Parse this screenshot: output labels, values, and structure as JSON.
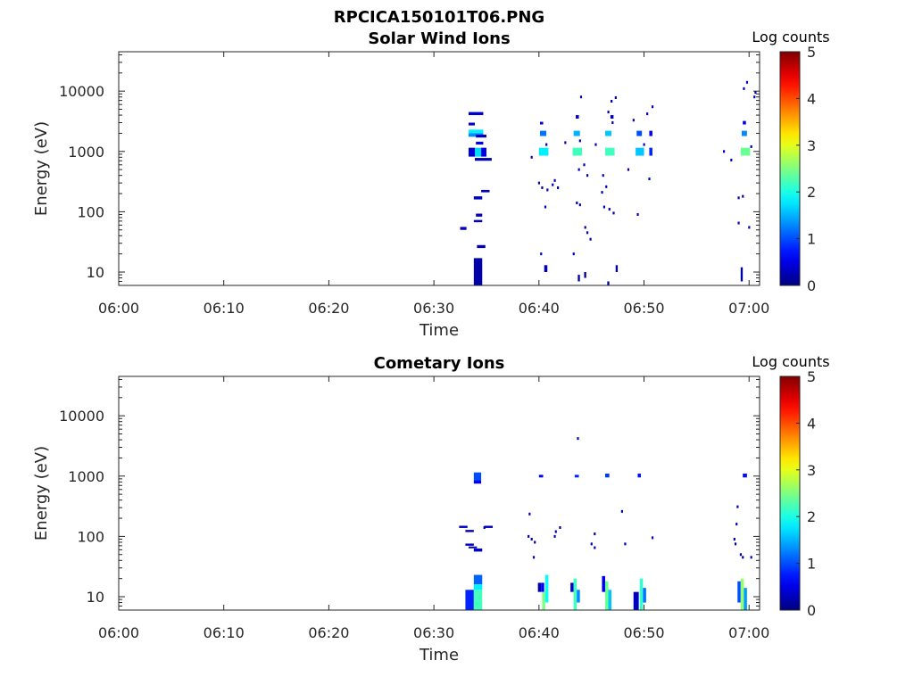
{
  "figure": {
    "title": "RPCICA150101T06.PNG"
  },
  "chart_data": [
    {
      "type": "heatmap",
      "title": "Solar Wind Ions",
      "xlabel": "Time",
      "ylabel": "Energy (eV)",
      "x_ticks": [
        "06:00",
        "06:10",
        "06:20",
        "06:30",
        "06:40",
        "06:50",
        "07:00"
      ],
      "x_range_minutes": [
        0,
        61
      ],
      "y_scale": "log",
      "y_ticks": [
        10,
        100,
        1000,
        10000
      ],
      "y_tick_labels": [
        "10",
        "100",
        "1000",
        "10000"
      ],
      "y_range": [
        6,
        45000
      ],
      "colorbar": {
        "label": "Log counts",
        "min": 0,
        "max": 5,
        "ticks": [
          "0",
          "1",
          "2",
          "3",
          "4",
          "5"
        ]
      },
      "cells": [
        {
          "t": 32.5,
          "dt": 0.6,
          "e1": 50,
          "e2": 56,
          "v": 0.3
        },
        {
          "t": 33.3,
          "dt": 1.4,
          "e1": 4000,
          "e2": 4500,
          "v": 0.4
        },
        {
          "t": 33.3,
          "dt": 0.6,
          "e1": 2700,
          "e2": 3000,
          "v": 0.4
        },
        {
          "t": 33.3,
          "dt": 1.4,
          "e1": 2000,
          "e2": 2300,
          "v": 1.8
        },
        {
          "t": 33.3,
          "dt": 1.4,
          "e1": 1750,
          "e2": 2000,
          "v": 1.3
        },
        {
          "t": 33.3,
          "dt": 0.6,
          "e1": 820,
          "e2": 1150,
          "v": 0.4
        },
        {
          "t": 33.9,
          "dt": 0.6,
          "e1": 820,
          "e2": 1150,
          "v": 1.7
        },
        {
          "t": 34.5,
          "dt": 0.5,
          "e1": 820,
          "e2": 1150,
          "v": 0.5
        },
        {
          "t": 33.9,
          "dt": 1.6,
          "e1": 700,
          "e2": 780,
          "v": 0.2
        },
        {
          "t": 34.0,
          "dt": 1.0,
          "e1": 1700,
          "e2": 1900,
          "v": 0.3
        },
        {
          "t": 34.0,
          "dt": 0.7,
          "e1": 1300,
          "e2": 1450,
          "v": 0.5
        },
        {
          "t": 34.5,
          "dt": 0.8,
          "e1": 210,
          "e2": 230,
          "v": 0.3
        },
        {
          "t": 33.8,
          "dt": 0.8,
          "e1": 160,
          "e2": 180,
          "v": 0.3
        },
        {
          "t": 34.0,
          "dt": 0.6,
          "e1": 83,
          "e2": 93,
          "v": 0.3
        },
        {
          "t": 33.8,
          "dt": 0.8,
          "e1": 67,
          "e2": 73,
          "v": 0.3
        },
        {
          "t": 34.1,
          "dt": 0.8,
          "e1": 25,
          "e2": 28,
          "v": 0.2
        },
        {
          "t": 33.8,
          "dt": 0.8,
          "e1": 6,
          "e2": 17,
          "v": 0.2
        },
        {
          "t": 40.0,
          "dt": 0.9,
          "e1": 850,
          "e2": 1150,
          "v": 1.8
        },
        {
          "t": 40.1,
          "dt": 0.6,
          "e1": 1800,
          "e2": 2200,
          "v": 1.2
        },
        {
          "t": 40.1,
          "dt": 0.3,
          "e1": 2800,
          "e2": 3100,
          "v": 0.5
        },
        {
          "t": 43.2,
          "dt": 0.9,
          "e1": 850,
          "e2": 1150,
          "v": 2.2
        },
        {
          "t": 43.3,
          "dt": 0.6,
          "e1": 1800,
          "e2": 2200,
          "v": 1.5
        },
        {
          "t": 43.5,
          "dt": 0.3,
          "e1": 3500,
          "e2": 4000,
          "v": 0.5
        },
        {
          "t": 46.3,
          "dt": 0.9,
          "e1": 850,
          "e2": 1150,
          "v": 2.2
        },
        {
          "t": 46.3,
          "dt": 0.6,
          "e1": 1800,
          "e2": 2200,
          "v": 1.6
        },
        {
          "t": 46.8,
          "dt": 0.3,
          "e1": 3500,
          "e2": 4000,
          "v": 0.4
        },
        {
          "t": 49.2,
          "dt": 0.8,
          "e1": 850,
          "e2": 1150,
          "v": 1.6
        },
        {
          "t": 49.3,
          "dt": 0.5,
          "e1": 1800,
          "e2": 2200,
          "v": 1.0
        },
        {
          "t": 50.5,
          "dt": 0.3,
          "e1": 850,
          "e2": 1150,
          "v": 0.8
        },
        {
          "t": 50.5,
          "dt": 0.3,
          "e1": 1800,
          "e2": 2200,
          "v": 0.6
        },
        {
          "t": 59.2,
          "dt": 0.9,
          "e1": 850,
          "e2": 1150,
          "v": 2.4
        },
        {
          "t": 59.3,
          "dt": 0.5,
          "e1": 1800,
          "e2": 2200,
          "v": 1.3
        },
        {
          "t": 59.4,
          "dt": 0.3,
          "e1": 2800,
          "e2": 3200,
          "v": 0.5
        },
        {
          "t": 40.5,
          "dt": 0.3,
          "e1": 10,
          "e2": 13,
          "v": 0.3
        },
        {
          "t": 43.7,
          "dt": 0.2,
          "e1": 7,
          "e2": 9,
          "v": 0.2
        },
        {
          "t": 44.3,
          "dt": 0.2,
          "e1": 8,
          "e2": 10,
          "v": 0.2
        },
        {
          "t": 47.3,
          "dt": 0.2,
          "e1": 10,
          "e2": 13,
          "v": 0.2
        },
        {
          "t": 46.5,
          "dt": 0.2,
          "e1": 6,
          "e2": 7,
          "v": 0.2
        },
        {
          "t": 59.2,
          "dt": 0.2,
          "e1": 7,
          "e2": 12,
          "v": 0.2
        }
      ],
      "dots": [
        {
          "t": 40.0,
          "e": 300
        },
        {
          "t": 40.3,
          "e": 250
        },
        {
          "t": 40.8,
          "e": 230
        },
        {
          "t": 41.3,
          "e": 280
        },
        {
          "t": 41.8,
          "e": 250
        },
        {
          "t": 39.3,
          "e": 800
        },
        {
          "t": 40.7,
          "e": 1300
        },
        {
          "t": 40.2,
          "e": 20
        },
        {
          "t": 40.6,
          "e": 120
        },
        {
          "t": 43.6,
          "e": 140
        },
        {
          "t": 43.9,
          "e": 130
        },
        {
          "t": 44.4,
          "e": 55
        },
        {
          "t": 44.6,
          "e": 45
        },
        {
          "t": 44.9,
          "e": 35
        },
        {
          "t": 43.3,
          "e": 20
        },
        {
          "t": 43.8,
          "e": 500
        },
        {
          "t": 44.3,
          "e": 600
        },
        {
          "t": 45.4,
          "e": 1300
        },
        {
          "t": 46.2,
          "e": 120
        },
        {
          "t": 46.7,
          "e": 110
        },
        {
          "t": 47.1,
          "e": 95
        },
        {
          "t": 46.0,
          "e": 210
        },
        {
          "t": 46.4,
          "e": 260
        },
        {
          "t": 46.1,
          "e": 400
        },
        {
          "t": 46.6,
          "e": 4500
        },
        {
          "t": 46.9,
          "e": 6800
        },
        {
          "t": 47.3,
          "e": 7800
        },
        {
          "t": 47.0,
          "e": 3000
        },
        {
          "t": 49.0,
          "e": 3300
        },
        {
          "t": 49.4,
          "e": 90
        },
        {
          "t": 50.0,
          "e": 1300
        },
        {
          "t": 50.3,
          "e": 4200
        },
        {
          "t": 50.8,
          "e": 5500
        },
        {
          "t": 48.5,
          "e": 500
        },
        {
          "t": 50.5,
          "e": 350
        },
        {
          "t": 44.0,
          "e": 8000
        },
        {
          "t": 43.9,
          "e": 1500
        },
        {
          "t": 42.5,
          "e": 1400
        },
        {
          "t": 57.6,
          "e": 1000
        },
        {
          "t": 58.3,
          "e": 720
        },
        {
          "t": 59.4,
          "e": 180
        },
        {
          "t": 59.0,
          "e": 170
        },
        {
          "t": 59.8,
          "e": 14000
        },
        {
          "t": 60.5,
          "e": 8000
        },
        {
          "t": 60.2,
          "e": 1200
        },
        {
          "t": 59.0,
          "e": 65
        },
        {
          "t": 60.0,
          "e": 55
        },
        {
          "t": 60.6,
          "e": 9500
        },
        {
          "t": 59.5,
          "e": 11000
        },
        {
          "t": 44.6,
          "e": 400
        },
        {
          "t": 41.5,
          "e": 330
        }
      ]
    },
    {
      "type": "heatmap",
      "title": "Cometary Ions",
      "xlabel": "Time",
      "ylabel": "Energy (eV)",
      "x_ticks": [
        "06:00",
        "06:10",
        "06:20",
        "06:30",
        "06:40",
        "06:50",
        "07:00"
      ],
      "x_range_minutes": [
        0,
        61
      ],
      "y_scale": "log",
      "y_ticks": [
        10,
        100,
        1000,
        10000
      ],
      "y_tick_labels": [
        "10",
        "100",
        "1000",
        "10000"
      ],
      "y_range": [
        6,
        45000
      ],
      "colorbar": {
        "label": "Log counts",
        "min": 0,
        "max": 5,
        "ticks": [
          "0",
          "1",
          "2",
          "3",
          "4",
          "5"
        ]
      },
      "cells": [
        {
          "t": 32.4,
          "dt": 0.8,
          "e1": 138,
          "e2": 150,
          "v": 0.3
        },
        {
          "t": 33.0,
          "dt": 0.8,
          "e1": 118,
          "e2": 128,
          "v": 0.3
        },
        {
          "t": 33.0,
          "dt": 0.8,
          "e1": 70,
          "e2": 76,
          "v": 0.3
        },
        {
          "t": 33.3,
          "dt": 0.8,
          "e1": 64,
          "e2": 68,
          "v": 0.3
        },
        {
          "t": 33.8,
          "dt": 0.8,
          "e1": 56,
          "e2": 63,
          "v": 0.4
        },
        {
          "t": 34.8,
          "dt": 0.8,
          "e1": 138,
          "e2": 150,
          "v": 0.3
        },
        {
          "t": 33.8,
          "dt": 0.7,
          "e1": 850,
          "e2": 1150,
          "v": 1.0
        },
        {
          "t": 33.8,
          "dt": 0.7,
          "e1": 750,
          "e2": 850,
          "v": 0.6
        },
        {
          "t": 33.0,
          "dt": 0.8,
          "e1": 6,
          "e2": 13,
          "v": 0.8
        },
        {
          "t": 33.8,
          "dt": 0.8,
          "e1": 16,
          "e2": 23,
          "v": 1.1
        },
        {
          "t": 33.8,
          "dt": 0.8,
          "e1": 13,
          "e2": 16,
          "v": 1.8
        },
        {
          "t": 33.8,
          "dt": 0.8,
          "e1": 6,
          "e2": 13,
          "v": 2.2
        },
        {
          "t": 39.9,
          "dt": 0.3,
          "e1": 12,
          "e2": 17,
          "v": 0.2
        },
        {
          "t": 40.2,
          "dt": 0.3,
          "e1": 12,
          "e2": 17,
          "v": 0.6
        },
        {
          "t": 40.3,
          "dt": 0.3,
          "e1": 6,
          "e2": 12,
          "v": 2.5
        },
        {
          "t": 40.6,
          "dt": 0.3,
          "e1": 8,
          "e2": 23,
          "v": 1.9
        },
        {
          "t": 43.0,
          "dt": 0.3,
          "e1": 12,
          "e2": 17,
          "v": 0.4
        },
        {
          "t": 43.3,
          "dt": 0.3,
          "e1": 6,
          "e2": 20,
          "v": 2.2
        },
        {
          "t": 43.6,
          "dt": 0.3,
          "e1": 8,
          "e2": 13,
          "v": 1.3
        },
        {
          "t": 46.0,
          "dt": 0.3,
          "e1": 12,
          "e2": 22,
          "v": 0.5
        },
        {
          "t": 46.3,
          "dt": 0.3,
          "e1": 6,
          "e2": 18,
          "v": 2.4
        },
        {
          "t": 46.6,
          "dt": 0.3,
          "e1": 6,
          "e2": 13,
          "v": 1.6
        },
        {
          "t": 49.0,
          "dt": 0.5,
          "e1": 6,
          "e2": 12,
          "v": 0.3
        },
        {
          "t": 49.6,
          "dt": 0.3,
          "e1": 6,
          "e2": 20,
          "v": 2.1
        },
        {
          "t": 49.9,
          "dt": 0.3,
          "e1": 8,
          "e2": 14,
          "v": 1.2
        },
        {
          "t": 58.9,
          "dt": 0.3,
          "e1": 8,
          "e2": 18,
          "v": 1.0
        },
        {
          "t": 59.2,
          "dt": 0.3,
          "e1": 6,
          "e2": 20,
          "v": 2.6
        },
        {
          "t": 59.5,
          "dt": 0.3,
          "e1": 6,
          "e2": 14,
          "v": 1.4
        },
        {
          "t": 40.0,
          "dt": 0.4,
          "e1": 950,
          "e2": 1050,
          "v": 0.6
        },
        {
          "t": 43.4,
          "dt": 0.4,
          "e1": 950,
          "e2": 1050,
          "v": 0.8
        },
        {
          "t": 46.3,
          "dt": 0.4,
          "e1": 950,
          "e2": 1100,
          "v": 0.9
        },
        {
          "t": 49.4,
          "dt": 0.3,
          "e1": 950,
          "e2": 1100,
          "v": 0.7
        },
        {
          "t": 59.4,
          "dt": 0.4,
          "e1": 950,
          "e2": 1100,
          "v": 0.7
        }
      ],
      "dots": [
        {
          "t": 39.1,
          "e": 235
        },
        {
          "t": 39.0,
          "e": 100
        },
        {
          "t": 39.3,
          "e": 90
        },
        {
          "t": 39.6,
          "e": 80
        },
        {
          "t": 41.6,
          "e": 120
        },
        {
          "t": 42.0,
          "e": 140
        },
        {
          "t": 41.5,
          "e": 100
        },
        {
          "t": 43.7,
          "e": 4200
        },
        {
          "t": 45.3,
          "e": 110
        },
        {
          "t": 45.0,
          "e": 75
        },
        {
          "t": 45.3,
          "e": 65
        },
        {
          "t": 47.9,
          "e": 260
        },
        {
          "t": 48.2,
          "e": 75
        },
        {
          "t": 50.8,
          "e": 95
        },
        {
          "t": 58.6,
          "e": 90
        },
        {
          "t": 58.7,
          "e": 75
        },
        {
          "t": 58.9,
          "e": 310
        },
        {
          "t": 58.8,
          "e": 160
        },
        {
          "t": 59.2,
          "e": 50
        },
        {
          "t": 59.4,
          "e": 45
        },
        {
          "t": 60.2,
          "e": 45
        },
        {
          "t": 34.8,
          "e": 140
        },
        {
          "t": 39.5,
          "e": 45
        }
      ]
    }
  ]
}
